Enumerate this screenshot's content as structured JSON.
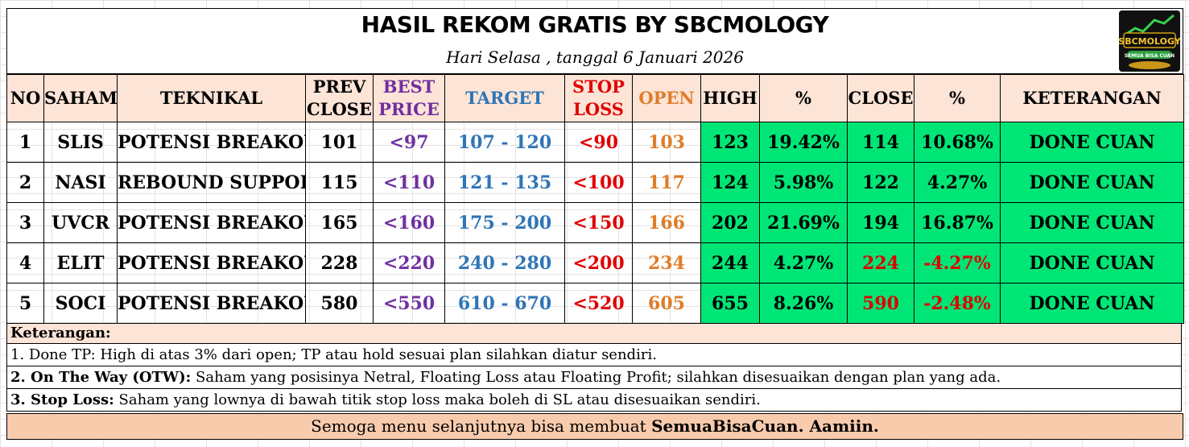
{
  "header": {
    "title": "HASIL REKOM GRATIS BY SBCMOLOGY",
    "date_line": "Hari Selasa , tanggal 6 Januari 2026",
    "logo_text": "SBCMOLOGY",
    "logo_subtext": "SEMUA BISA CUAN"
  },
  "columns": {
    "no": "NO",
    "saham": "SAHAM",
    "teknikal": "TEKNIKAL",
    "prev_close_1": "PREV",
    "prev_close_2": "CLOSE",
    "best_price_1": "BEST",
    "best_price_2": "PRICE",
    "target": "TARGET",
    "stop_loss_1": "STOP",
    "stop_loss_2": "LOSS",
    "open": "OPEN",
    "high": "HIGH",
    "pct_high": "%",
    "close": "CLOSE",
    "pct_close": "%",
    "keterangan": "KETERANGAN"
  },
  "rows": [
    {
      "no": "1",
      "saham": "SLIS",
      "teknikal": "POTENSI BREAKOUT R.",
      "prev_close": "101",
      "best_price": "<97",
      "target": "107 - 120",
      "stop_loss": "<90",
      "open": "103",
      "high": "123",
      "pct_high": "19.42%",
      "close": "114",
      "pct_close": "10.68%",
      "keterangan": "DONE CUAN",
      "close_negative": false
    },
    {
      "no": "2",
      "saham": "NASI",
      "teknikal": "REBOUND SUPPORT.",
      "prev_close": "115",
      "best_price": "<110",
      "target": "121 - 135",
      "stop_loss": "<100",
      "open": "117",
      "high": "124",
      "pct_high": "5.98%",
      "close": "122",
      "pct_close": "4.27%",
      "keterangan": "DONE CUAN",
      "close_negative": false
    },
    {
      "no": "3",
      "saham": "UVCR",
      "teknikal": "POTENSI BREAKOUT R.",
      "prev_close": "165",
      "best_price": "<160",
      "target": "175 - 200",
      "stop_loss": "<150",
      "open": "166",
      "high": "202",
      "pct_high": "21.69%",
      "close": "194",
      "pct_close": "16.87%",
      "keterangan": "DONE CUAN",
      "close_negative": false
    },
    {
      "no": "4",
      "saham": "ELIT",
      "teknikal": "POTENSI BREAKOUT R.",
      "prev_close": "228",
      "best_price": "<220",
      "target": "240 - 280",
      "stop_loss": "<200",
      "open": "234",
      "high": "244",
      "pct_high": "4.27%",
      "close": "224",
      "pct_close": "-4.27%",
      "keterangan": "DONE CUAN",
      "close_negative": true
    },
    {
      "no": "5",
      "saham": "SOCI",
      "teknikal": "POTENSI BREAKOUT R.",
      "prev_close": "580",
      "best_price": "<550",
      "target": "610 - 670",
      "stop_loss": "<520",
      "open": "605",
      "high": "655",
      "pct_high": "8.26%",
      "close": "590",
      "pct_close": "-2.48%",
      "keterangan": "DONE CUAN",
      "close_negative": true
    }
  ],
  "notes": {
    "heading": "Keterangan:",
    "line1": "1. Done TP: High di atas 3% dari open; TP atau hold sesuai plan silahkan diatur sendiri.",
    "line2_label": "2. On The Way (OTW):",
    "line2_text": " Saham yang posisinya Netral, Floating Loss atau Floating Profit; silahkan disesuaikan dengan plan yang ada.",
    "line3_label": "3. Stop Loss:",
    "line3_text": " Saham yang lownya di bawah titik stop loss maka boleh di SL atau disesuaikan sendiri."
  },
  "footer": {
    "text": "Semoga menu selanjutnya bisa membuat ",
    "bold": "SemuaBisaCuan. Aamiin."
  },
  "colors": {
    "header_bg": "#fce4d6",
    "footer_bg": "#f8cbad",
    "green_cells": "#00e676",
    "best_price": "#7030a0",
    "target": "#2e75b6",
    "stop_loss": "#e00000",
    "open": "#e07c28",
    "negative": "#e00000"
  }
}
